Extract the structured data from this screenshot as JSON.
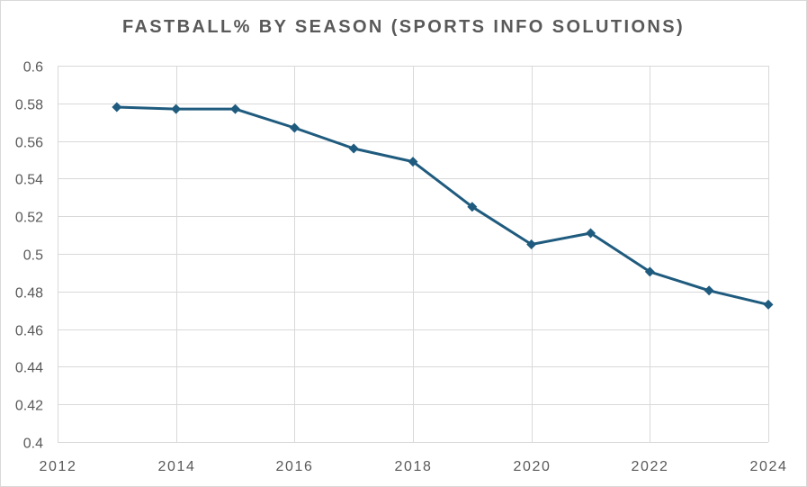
{
  "chart_data": {
    "type": "line",
    "title": "FASTBALL% BY SEASON (SPORTS INFO SOLUTIONS)",
    "xlabel": "",
    "ylabel": "",
    "xlim": [
      2012,
      2024
    ],
    "ylim": [
      0.4,
      0.6
    ],
    "x_ticks": [
      2012,
      2014,
      2016,
      2018,
      2020,
      2022,
      2024
    ],
    "x_tick_labels": [
      "2012",
      "2014",
      "2016",
      "2018",
      "2020",
      "2022",
      "2024"
    ],
    "y_ticks": [
      0.4,
      0.42,
      0.44,
      0.46,
      0.48,
      0.5,
      0.52,
      0.54,
      0.56,
      0.58,
      0.6
    ],
    "y_tick_labels": [
      "0.4",
      "0.42",
      "0.44",
      "0.46",
      "0.48",
      "0.5",
      "0.52",
      "0.54",
      "0.56",
      "0.58",
      "0.6"
    ],
    "grid": true,
    "legend": "none",
    "series": [
      {
        "color": "#1f5b7e",
        "marker": "diamond",
        "x": [
          2013,
          2014,
          2015,
          2016,
          2017,
          2018,
          2019,
          2020,
          2021,
          2022,
          2023,
          2024
        ],
        "y": [
          0.578,
          0.577,
          0.577,
          0.567,
          0.556,
          0.549,
          0.525,
          0.505,
          0.511,
          0.4905,
          0.4805,
          0.473
        ]
      }
    ],
    "colors": {
      "grid": "#d9d9d9",
      "text": "#595959",
      "frame": "#d9d9d9"
    }
  }
}
